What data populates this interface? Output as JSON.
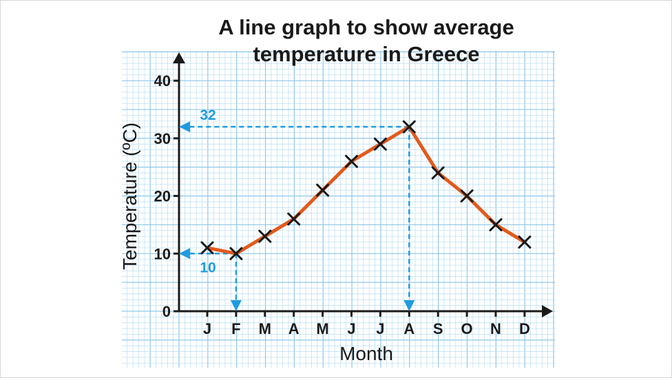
{
  "chart_data": {
    "type": "line",
    "title_lines": [
      "A line graph to show average",
      "temperature in Greece"
    ],
    "xlabel": "Month",
    "ylabel": "Temperature (ºC)",
    "categories": [
      "J",
      "F",
      "M",
      "A",
      "M",
      "J",
      "J",
      "A",
      "S",
      "O",
      "N",
      "D"
    ],
    "values": [
      11,
      10,
      13,
      16,
      21,
      26,
      29,
      32,
      24,
      20,
      15,
      12
    ],
    "ylim": [
      0,
      40
    ],
    "yticks": [
      0,
      10,
      20,
      30,
      40
    ],
    "grid": true,
    "annotations": [
      {
        "label": "32",
        "value": 32,
        "category_index": 7
      },
      {
        "label": "10",
        "value": 10,
        "category_index": 1
      }
    ],
    "colors": {
      "line": "#e25a1c",
      "marker": "#1a1a1a",
      "annotation": "#1f9be0",
      "grid_minor": "#b9ddf2",
      "grid_major": "#8ec7ea",
      "axis": "#1a1a1a"
    }
  }
}
